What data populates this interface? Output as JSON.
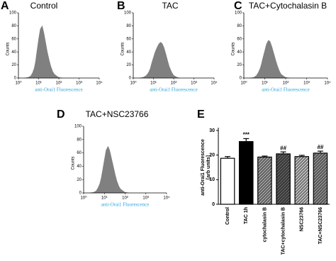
{
  "chart_data": [
    {
      "type": "area",
      "panel": "A",
      "title": "Control",
      "xlabel": "anti-Orai1 Fluorescence",
      "ylabel": "Counts",
      "color": "#808080",
      "xscale": "log",
      "x": [
        2,
        3,
        4,
        5,
        6,
        7,
        8,
        10,
        12,
        15,
        18,
        22,
        27,
        33,
        40,
        50,
        60,
        80,
        100,
        150
      ],
      "values": [
        0,
        1,
        3,
        8,
        15,
        25,
        38,
        60,
        75,
        80,
        70,
        55,
        40,
        28,
        18,
        10,
        6,
        3,
        1,
        0
      ],
      "xlim": [
        1,
        10000
      ],
      "xticks": [
        {
          "value": 1,
          "label": "10⁰"
        },
        {
          "value": 10,
          "label": "10¹"
        },
        {
          "value": 100,
          "label": "10²"
        },
        {
          "value": 1000,
          "label": "10³"
        },
        {
          "value": 10000,
          "label": "10⁴"
        }
      ],
      "ylim": [
        0,
        100
      ],
      "yticks": [
        0,
        20,
        40,
        60,
        80,
        100
      ]
    },
    {
      "type": "area",
      "panel": "B",
      "title": "TAC",
      "xlabel": "anti-Orai1 Fluorescence",
      "ylabel": "Counts",
      "color": "#808080",
      "xscale": "log",
      "x": [
        2,
        3,
        4,
        5,
        6,
        7,
        8,
        10,
        12,
        15,
        18,
        22,
        27,
        33,
        40,
        50,
        60,
        80,
        100,
        150,
        200
      ],
      "values": [
        0,
        1,
        3,
        6,
        10,
        15,
        22,
        32,
        40,
        47,
        52,
        55,
        53,
        47,
        38,
        27,
        18,
        9,
        4,
        1,
        0
      ],
      "xlim": [
        1,
        10000
      ],
      "xticks": [
        {
          "value": 1,
          "label": "10⁰"
        },
        {
          "value": 10,
          "label": "10¹"
        },
        {
          "value": 100,
          "label": "10²"
        },
        {
          "value": 1000,
          "label": "10³"
        },
        {
          "value": 10000,
          "label": "10⁴"
        }
      ],
      "ylim": [
        0,
        100
      ],
      "yticks": [
        0,
        20,
        40,
        60,
        80,
        100
      ]
    },
    {
      "type": "area",
      "panel": "C",
      "title": "TAC+Cytochalasin B",
      "xlabel": "anti-Orai1 Fluorescence",
      "ylabel": "Counts",
      "color": "#808080",
      "xscale": "log",
      "x": [
        2,
        3,
        4,
        5,
        6,
        7,
        8,
        10,
        12,
        15,
        18,
        22,
        27,
        33,
        40,
        50,
        60,
        80,
        100,
        150
      ],
      "values": [
        0,
        1,
        4,
        9,
        15,
        22,
        30,
        42,
        52,
        58,
        56,
        48,
        38,
        28,
        19,
        11,
        6,
        3,
        1,
        0
      ],
      "xlim": [
        1,
        10000
      ],
      "xticks": [
        {
          "value": 1,
          "label": "10⁰"
        },
        {
          "value": 10,
          "label": "10¹"
        },
        {
          "value": 100,
          "label": "10²"
        },
        {
          "value": 1000,
          "label": "10³"
        },
        {
          "value": 10000,
          "label": "10⁴"
        }
      ],
      "ylim": [
        0,
        100
      ],
      "yticks": [
        0,
        20,
        40,
        60,
        80,
        100
      ]
    },
    {
      "type": "area",
      "panel": "D",
      "title": "TAC+NSC23766",
      "xlabel": "anti-Orai1 Fluorescence",
      "ylabel": "Counts",
      "color": "#808080",
      "xscale": "log",
      "x": [
        2,
        3,
        4,
        5,
        6,
        7,
        8,
        10,
        12,
        15,
        18,
        22,
        27,
        33,
        40,
        50,
        60,
        80,
        100,
        150
      ],
      "values": [
        0,
        1,
        3,
        8,
        14,
        22,
        32,
        50,
        64,
        70,
        64,
        52,
        40,
        28,
        18,
        10,
        6,
        3,
        1,
        0
      ],
      "xlim": [
        1,
        10000
      ],
      "xticks": [
        {
          "value": 1,
          "label": "10⁰"
        },
        {
          "value": 10,
          "label": "10¹"
        },
        {
          "value": 100,
          "label": "10²"
        },
        {
          "value": 1000,
          "label": "10³"
        },
        {
          "value": 10000,
          "label": "10⁴"
        }
      ],
      "ylim": [
        0,
        100
      ],
      "yticks": [
        0,
        20,
        40,
        60,
        80,
        100
      ]
    },
    {
      "type": "bar",
      "panel": "E",
      "ylabel": [
        "anti-Orai1 Fluorescence",
        "[arb units]"
      ],
      "categories": [
        "Control",
        "TAC 1h",
        "cytochalasin B",
        "TAC+cytochalasin B",
        "NSC23766",
        "TAC+NSC23766"
      ],
      "values": [
        18.7,
        25.5,
        19.2,
        20.5,
        19.4,
        20.8
      ],
      "errors": [
        0.7,
        1.2,
        0.4,
        0.8,
        0.5,
        0.8
      ],
      "colors": [
        "#ffffff",
        "#000000",
        "#9a9a9a",
        "#5a5a5a",
        "#bbbbbb",
        "#8a8a8a"
      ],
      "hatch": [
        false,
        false,
        true,
        true,
        true,
        true
      ],
      "bar_annotations": [
        null,
        "***",
        null,
        "##",
        null,
        "##"
      ],
      "ylim": [
        0,
        30
      ],
      "yticks": [
        0,
        10,
        20,
        30
      ]
    }
  ]
}
